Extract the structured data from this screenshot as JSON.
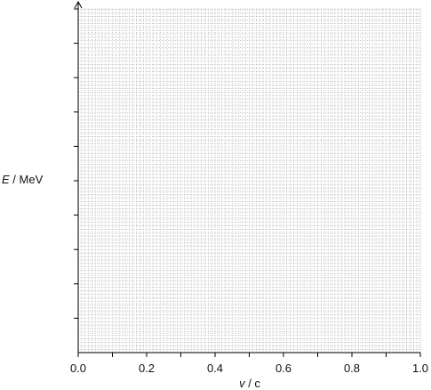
{
  "chart_data": {
    "type": "scatter",
    "title": "",
    "x_axis": {
      "var": "v",
      "unit": "c",
      "sep": " / ",
      "ticks": [
        0,
        0.2,
        0.4,
        0.6,
        0.8,
        1
      ],
      "tick_labels": [
        "0.0",
        "0.2",
        "0.4",
        "0.6",
        "0.8",
        "1.0"
      ],
      "range": [
        0,
        1
      ]
    },
    "y_axis": {
      "var": "E",
      "unit": "MeV",
      "sep": " / ",
      "tick_labels": []
    },
    "series": [],
    "grid": true,
    "legend": "none"
  }
}
